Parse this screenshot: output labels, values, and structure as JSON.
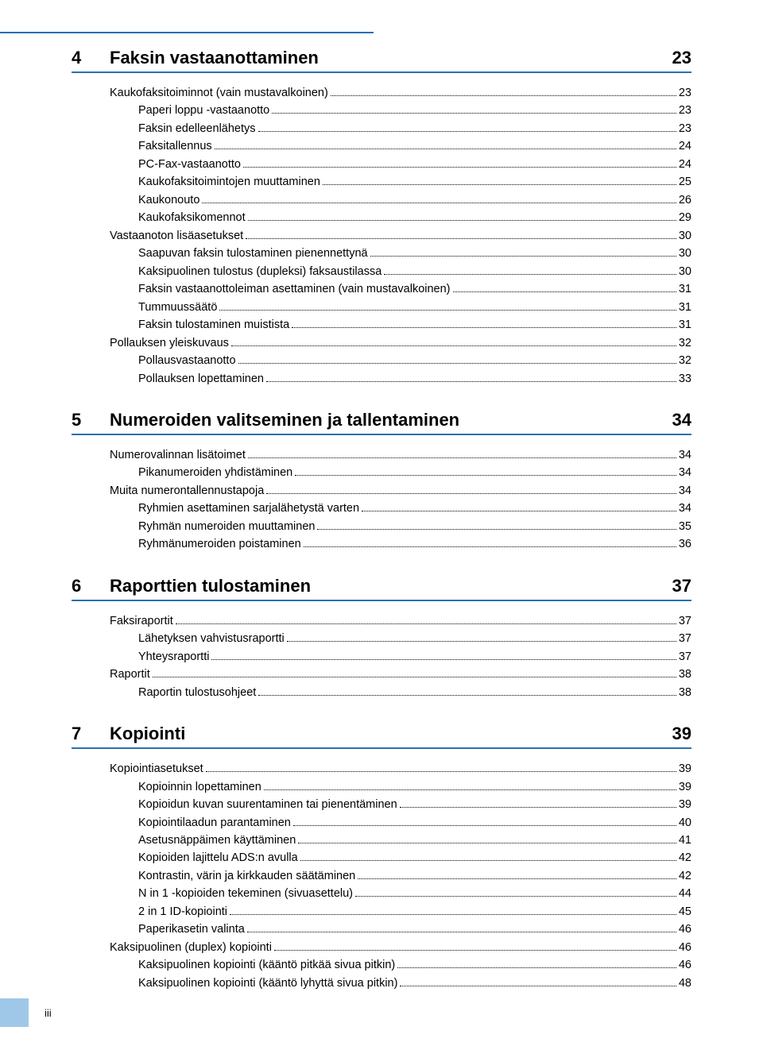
{
  "colors": {
    "rule": "#2b6fb5",
    "footer_tab": "#9fc8e8",
    "text": "#000000",
    "background": "#ffffff"
  },
  "typography": {
    "section_fontsize": 22,
    "entry_fontsize": 14.5,
    "font_family": "Arial"
  },
  "footer_label": "iii",
  "sections": [
    {
      "number": "4",
      "title": "Faksin vastaanottaminen",
      "page": "23",
      "entries": [
        {
          "level": 1,
          "label": "Kaukofaksitoiminnot (vain mustavalkoinen)",
          "page": "23"
        },
        {
          "level": 2,
          "label": "Paperi loppu -vastaanotto",
          "page": "23"
        },
        {
          "level": 2,
          "label": "Faksin edelleenlähetys",
          "page": "23"
        },
        {
          "level": 2,
          "label": "Faksitallennus",
          "page": "24"
        },
        {
          "level": 2,
          "label": "PC-Fax-vastaanotto",
          "page": "24"
        },
        {
          "level": 2,
          "label": "Kaukofaksitoimintojen muuttaminen",
          "page": "25"
        },
        {
          "level": 2,
          "label": "Kaukonouto",
          "page": "26"
        },
        {
          "level": 2,
          "label": "Kaukofaksikomennot",
          "page": "29"
        },
        {
          "level": 1,
          "label": "Vastaanoton lisäasetukset",
          "page": "30"
        },
        {
          "level": 2,
          "label": "Saapuvan faksin tulostaminen pienennettynä",
          "page": "30"
        },
        {
          "level": 2,
          "label": "Kaksipuolinen tulostus (dupleksi) faksaustilassa",
          "page": "30"
        },
        {
          "level": 2,
          "label": "Faksin vastaanottoleiman asettaminen (vain mustavalkoinen)",
          "page": "31"
        },
        {
          "level": 2,
          "label": "Tummuussäätö",
          "page": "31"
        },
        {
          "level": 2,
          "label": "Faksin tulostaminen muistista",
          "page": "31"
        },
        {
          "level": 1,
          "label": "Pollauksen yleiskuvaus",
          "page": "32"
        },
        {
          "level": 2,
          "label": "Pollausvastaanotto",
          "page": "32"
        },
        {
          "level": 2,
          "label": "Pollauksen lopettaminen",
          "page": "33"
        }
      ]
    },
    {
      "number": "5",
      "title": "Numeroiden valitseminen ja tallentaminen",
      "page": "34",
      "entries": [
        {
          "level": 1,
          "label": "Numerovalinnan lisätoimet",
          "page": "34"
        },
        {
          "level": 2,
          "label": "Pikanumeroiden yhdistäminen",
          "page": "34"
        },
        {
          "level": 1,
          "label": "Muita numerontallennustapoja",
          "page": "34"
        },
        {
          "level": 2,
          "label": "Ryhmien asettaminen sarjalähetystä varten",
          "page": "34"
        },
        {
          "level": 2,
          "label": "Ryhmän numeroiden muuttaminen",
          "page": "35"
        },
        {
          "level": 2,
          "label": "Ryhmänumeroiden poistaminen",
          "page": "36"
        }
      ]
    },
    {
      "number": "6",
      "title": "Raporttien tulostaminen",
      "page": "37",
      "entries": [
        {
          "level": 1,
          "label": "Faksiraportit",
          "page": "37"
        },
        {
          "level": 2,
          "label": "Lähetyksen vahvistusraportti",
          "page": "37"
        },
        {
          "level": 2,
          "label": "Yhteysraportti",
          "page": "37"
        },
        {
          "level": 1,
          "label": "Raportit",
          "page": "38"
        },
        {
          "level": 2,
          "label": "Raportin tulostusohjeet",
          "page": "38"
        }
      ]
    },
    {
      "number": "7",
      "title": "Kopiointi",
      "page": "39",
      "entries": [
        {
          "level": 1,
          "label": "Kopiointiasetukset",
          "page": "39"
        },
        {
          "level": 2,
          "label": "Kopioinnin lopettaminen",
          "page": "39"
        },
        {
          "level": 2,
          "label": "Kopioidun kuvan suurentaminen tai pienentäminen",
          "page": "39"
        },
        {
          "level": 2,
          "label": "Kopiointilaadun parantaminen",
          "page": "40"
        },
        {
          "level": 2,
          "label": "Asetusnäppäimen käyttäminen",
          "page": "41"
        },
        {
          "level": 2,
          "label": "Kopioiden lajittelu ADS:n avulla",
          "page": "42"
        },
        {
          "level": 2,
          "label": "Kontrastin, värin ja kirkkauden säätäminen",
          "page": "42"
        },
        {
          "level": 2,
          "label": "N in 1 -kopioiden tekeminen (sivuasettelu)",
          "page": "44"
        },
        {
          "level": 2,
          "label": "2 in 1 ID-kopiointi",
          "page": "45"
        },
        {
          "level": 2,
          "label": "Paperikasetin valinta",
          "page": "46"
        },
        {
          "level": 1,
          "label": "Kaksipuolinen (duplex) kopiointi",
          "page": "46"
        },
        {
          "level": 2,
          "label": "Kaksipuolinen kopiointi (kääntö pitkää sivua pitkin)",
          "page": "46"
        },
        {
          "level": 2,
          "label": "Kaksipuolinen kopiointi (kääntö lyhyttä sivua pitkin)",
          "page": "48"
        }
      ]
    }
  ]
}
